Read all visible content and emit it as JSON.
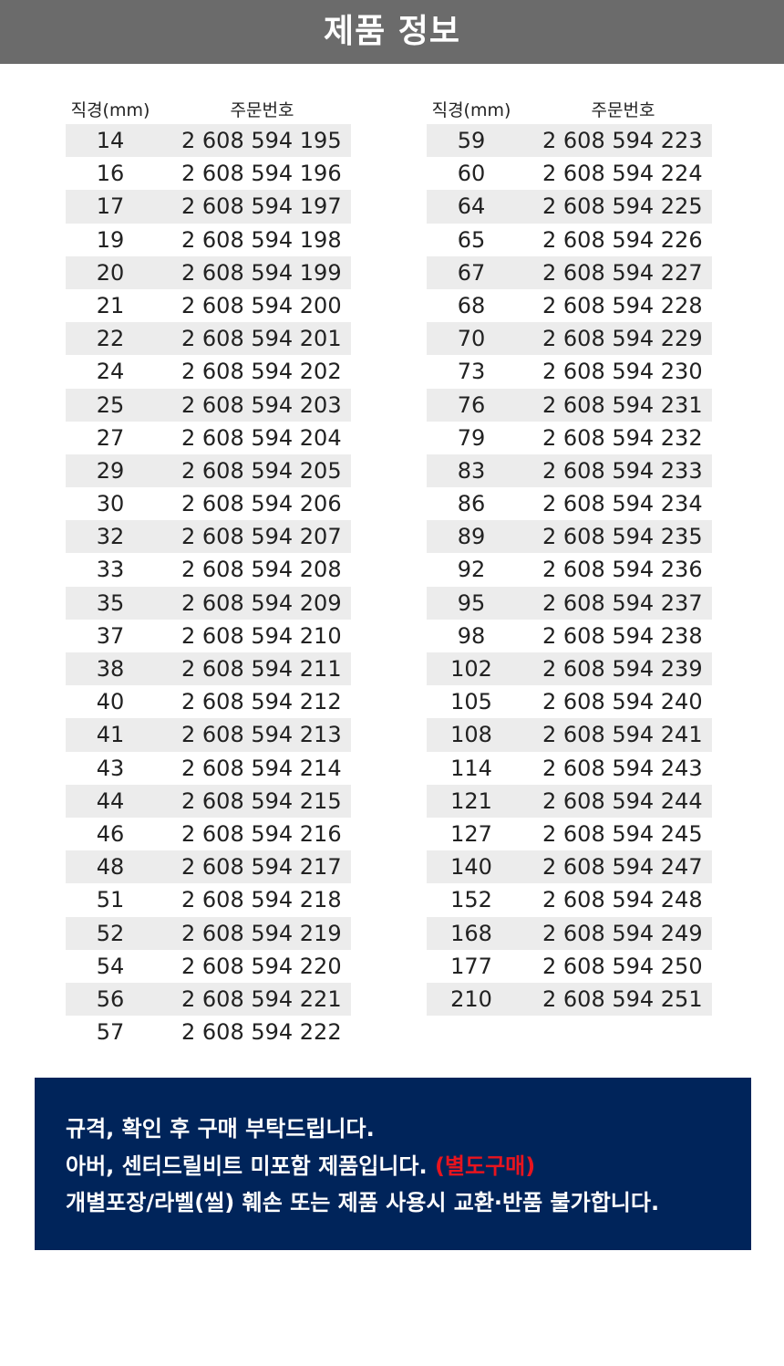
{
  "header": {
    "title": "제품 정보"
  },
  "table": {
    "col_size": "직경(mm)",
    "col_order": "주문번호",
    "left_rows": [
      [
        "14",
        "2 608 594 195"
      ],
      [
        "16",
        "2 608 594 196"
      ],
      [
        "17",
        "2 608 594 197"
      ],
      [
        "19",
        "2 608 594 198"
      ],
      [
        "20",
        "2 608 594 199"
      ],
      [
        "21",
        "2 608 594 200"
      ],
      [
        "22",
        "2 608 594 201"
      ],
      [
        "24",
        "2 608 594 202"
      ],
      [
        "25",
        "2 608 594 203"
      ],
      [
        "27",
        "2 608 594 204"
      ],
      [
        "29",
        "2 608 594 205"
      ],
      [
        "30",
        "2 608 594 206"
      ],
      [
        "32",
        "2 608 594 207"
      ],
      [
        "33",
        "2 608 594 208"
      ],
      [
        "35",
        "2 608 594 209"
      ],
      [
        "37",
        "2 608 594 210"
      ],
      [
        "38",
        "2 608 594 211"
      ],
      [
        "40",
        "2 608 594 212"
      ],
      [
        "41",
        "2 608 594 213"
      ],
      [
        "43",
        "2 608 594 214"
      ],
      [
        "44",
        "2 608 594 215"
      ],
      [
        "46",
        "2 608 594 216"
      ],
      [
        "48",
        "2 608 594 217"
      ],
      [
        "51",
        "2 608 594 218"
      ],
      [
        "52",
        "2 608 594 219"
      ],
      [
        "54",
        "2 608 594 220"
      ],
      [
        "56",
        "2 608 594 221"
      ],
      [
        "57",
        "2 608 594 222"
      ]
    ],
    "right_rows": [
      [
        "59",
        "2 608 594 223"
      ],
      [
        "60",
        "2 608 594 224"
      ],
      [
        "64",
        "2 608 594 225"
      ],
      [
        "65",
        "2 608 594 226"
      ],
      [
        "67",
        "2 608 594 227"
      ],
      [
        "68",
        "2 608 594 228"
      ],
      [
        "70",
        "2 608 594 229"
      ],
      [
        "73",
        "2 608 594 230"
      ],
      [
        "76",
        "2 608 594 231"
      ],
      [
        "79",
        "2 608 594 232"
      ],
      [
        "83",
        "2 608 594 233"
      ],
      [
        "86",
        "2 608 594 234"
      ],
      [
        "89",
        "2 608 594 235"
      ],
      [
        "92",
        "2 608 594 236"
      ],
      [
        "95",
        "2 608 594 237"
      ],
      [
        "98",
        "2 608 594 238"
      ],
      [
        "102",
        "2 608 594 239"
      ],
      [
        "105",
        "2 608 594 240"
      ],
      [
        "108",
        "2 608 594 241"
      ],
      [
        "114",
        "2 608 594 243"
      ],
      [
        "121",
        "2 608 594 244"
      ],
      [
        "127",
        "2 608 594 245"
      ],
      [
        "140",
        "2 608 594 247"
      ],
      [
        "152",
        "2 608 594 248"
      ],
      [
        "168",
        "2 608 594 249"
      ],
      [
        "177",
        "2 608 594 250"
      ],
      [
        "210",
        "2 608 594 251"
      ]
    ]
  },
  "notice": {
    "line1": "규격, 확인 후 구매 부탁드립니다.",
    "line2": "아버, 센터드릴비트 미포함 제품입니다.",
    "line2_highlight": "(별도구매)",
    "line3": "개별포장/라벨(씰) 훼손 또는 제품 사용시 교환·반품 불가합니다.",
    "background_color": "#00245a",
    "highlight_color": "#e8141e"
  }
}
